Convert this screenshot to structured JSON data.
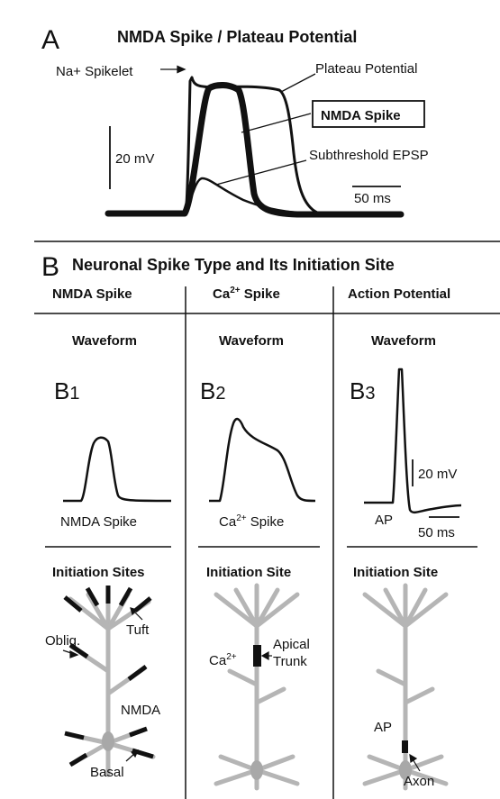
{
  "panel_a": {
    "letter": "A",
    "title": "NMDA Spike / Plateau Potential",
    "labels": {
      "na_spikelet": "Na+ Spikelet",
      "plateau": "Plateau Potential",
      "nmda": "NMDA Spike",
      "subthreshold": "Subthreshold EPSP"
    },
    "scalebar": {
      "y_text": "20 mV",
      "x_text": "50 ms"
    }
  },
  "panel_b": {
    "letter": "B",
    "title": "Neuronal Spike Type and Its Initiation Site",
    "columns": [
      {
        "heading": "NMDA Spike",
        "waveform_title": "Waveform",
        "sub_letter": "B",
        "sub_index": "1",
        "caption": "NMDA Spike",
        "sites_title": "Initiation Sites",
        "labels": {
          "tuft": "Tuft",
          "obliq": "Obliq.",
          "nmda": "NMDA",
          "basal": "Basal"
        }
      },
      {
        "heading_base": "Ca",
        "heading_sup": "2+",
        "heading_rest": " Spike",
        "waveform_title": "Waveform",
        "sub_letter": "B",
        "sub_index": "2",
        "caption_base": "Ca",
        "caption_sup": "2+",
        "caption_rest": " Spike",
        "sites_title": "Initiation Site",
        "labels": {
          "ca_base": "Ca",
          "ca_sup": "2+",
          "apical": "Apical",
          "trunk": "Trunk"
        }
      },
      {
        "heading": "Action Potential",
        "waveform_title": "Waveform",
        "sub_letter": "B",
        "sub_index": "3",
        "sites_title": "Initiation Site",
        "ap_label": "AP",
        "scalebar": {
          "y_text": "20 mV",
          "x_text": "50 ms"
        },
        "labels": {
          "ap": "AP",
          "axon": "Axon"
        }
      }
    ]
  },
  "colors": {
    "ink": "#111111",
    "dendrite": "#b5b5b5",
    "soma": "#a8a8a8",
    "bar": "#111111"
  }
}
